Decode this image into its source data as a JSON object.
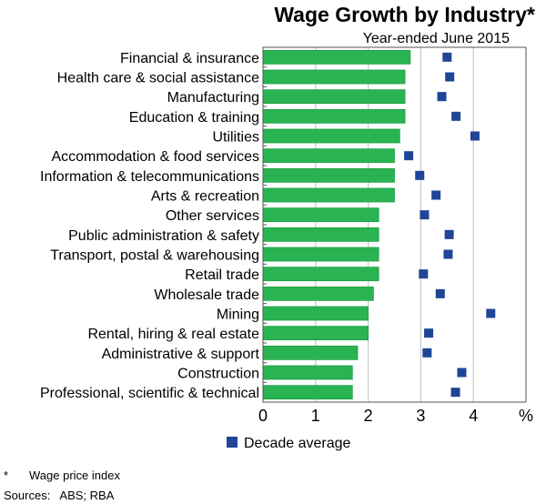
{
  "chart_data": {
    "type": "bar",
    "orientation": "horizontal",
    "title": "Wage Growth by Industry*",
    "subtitle": "Year-ended June 2015",
    "unit_label": "%",
    "xlim": [
      0,
      5
    ],
    "xticks": [
      "0",
      "1",
      "2",
      "3",
      "4"
    ],
    "grid": "vertical",
    "categories": [
      "Financial & insurance",
      "Health care & social assistance",
      "Manufacturing",
      "Education & training",
      "Utilities",
      "Accommodation & food services",
      "Information & telecommunications",
      "Arts & recreation",
      "Other services",
      "Public administration & safety",
      "Transport, postal & warehousing",
      "Retail trade",
      "Wholesale trade",
      "Mining",
      "Rental, hiring & real estate",
      "Administrative & support",
      "Construction",
      "Professional, scientific & technical"
    ],
    "series": [
      {
        "values": [
          2.8,
          2.7,
          2.7,
          2.7,
          2.6,
          2.5,
          2.5,
          2.5,
          2.2,
          2.2,
          2.2,
          2.2,
          2.1,
          2.0,
          2.0,
          1.8,
          1.7,
          1.7
        ],
        "color": "#2ab352",
        "kind": "bar"
      },
      {
        "name": "Decade average",
        "values": [
          3.5,
          3.55,
          3.4,
          3.67,
          4.03,
          2.77,
          2.98,
          3.29,
          3.07,
          3.54,
          3.52,
          3.05,
          3.37,
          4.33,
          3.15,
          3.12,
          3.78,
          3.66
        ],
        "color": "#1f4597",
        "kind": "marker"
      }
    ],
    "legend": "bottom",
    "footnote": "Wage price index",
    "footnote_marker": "*",
    "sources": "Sources:   ABS; RBA"
  }
}
